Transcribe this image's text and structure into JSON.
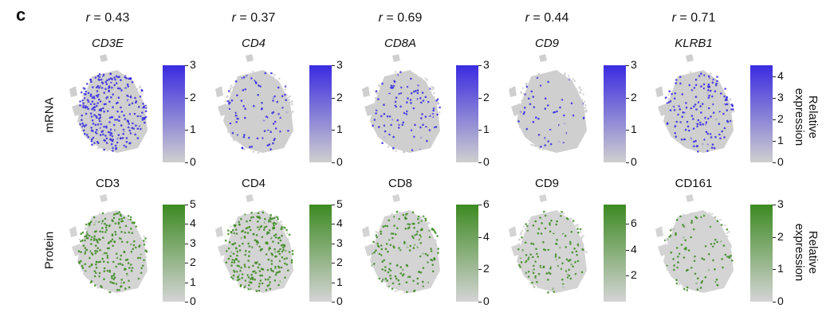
{
  "panel_letter": "c",
  "row_labels": {
    "mrna": "mRNA",
    "protein": "Protein"
  },
  "side_label": "Relative expression",
  "colors": {
    "mrna_high": "#3a2be0",
    "mrna_low": "#cfcfcf",
    "protein_high": "#3d8a22",
    "protein_low": "#d4d4d4"
  },
  "columns": [
    {
      "r": "0.43",
      "gene": "CD3E",
      "protein": "CD3",
      "mrna_ticks": [
        "3",
        "2",
        "1",
        "0"
      ],
      "mrna_max": 3,
      "protein_ticks": [
        "5",
        "4",
        "3",
        "2",
        "1",
        "0"
      ],
      "protein_max": 5,
      "mrna_level": 0.65,
      "protein_level": 0.55
    },
    {
      "r": "0.37",
      "gene": "CD4",
      "protein": "CD4",
      "mrna_ticks": [
        "3",
        "2",
        "1",
        "0"
      ],
      "mrna_max": 3,
      "protein_ticks": [
        "5",
        "4",
        "3",
        "2",
        "1",
        "0"
      ],
      "protein_max": 5,
      "mrna_level": 0.18,
      "protein_level": 0.7
    },
    {
      "r": "0.69",
      "gene": "CD8A",
      "protein": "CD8",
      "mrna_ticks": [
        "3",
        "2",
        "1",
        "0"
      ],
      "mrna_max": 3,
      "protein_ticks": [
        "6",
        "4",
        "2",
        "0"
      ],
      "protein_max": 6,
      "mrna_level": 0.22,
      "protein_level": 0.4
    },
    {
      "r": "0.44",
      "gene": "CD9",
      "protein": "CD9",
      "mrna_ticks": [
        "3",
        "2",
        "1",
        "0"
      ],
      "mrna_max": 3,
      "protein_ticks": [
        "6",
        "4",
        "2"
      ],
      "protein_max": 7.5,
      "mrna_level": 0.08,
      "protein_level": 0.3
    },
    {
      "r": "0.71",
      "gene": "KLRB1",
      "protein": "CD161",
      "mrna_ticks": [
        "4",
        "3",
        "2",
        "1",
        "0"
      ],
      "mrna_max": 4.5,
      "protein_ticks": [
        "3",
        "2",
        "1",
        "0"
      ],
      "protein_max": 3,
      "mrna_level": 0.3,
      "protein_level": 0.2
    }
  ]
}
